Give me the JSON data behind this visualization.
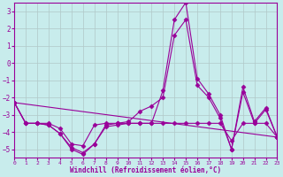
{
  "xlabel": "Windchill (Refroidissement éolien,°C)",
  "background_color": "#c8ecec",
  "line_color": "#990099",
  "grid_color": "#b0c8c8",
  "xlim": [
    0,
    23
  ],
  "ylim": [
    -5.5,
    3.5
  ],
  "yticks": [
    -5,
    -4,
    -3,
    -2,
    -1,
    0,
    1,
    2,
    3
  ],
  "xticks": [
    0,
    1,
    2,
    3,
    4,
    5,
    6,
    7,
    8,
    9,
    10,
    11,
    12,
    13,
    14,
    15,
    16,
    17,
    18,
    19,
    20,
    21,
    22,
    23
  ],
  "series": [
    {
      "x": [
        0,
        1,
        2,
        3,
        4,
        5,
        6,
        7,
        8,
        9,
        10,
        11,
        12,
        13,
        14,
        15,
        16,
        17,
        18,
        19,
        20,
        21,
        22,
        23
      ],
      "y": [
        -2.3,
        -3.5,
        -3.5,
        -3.6,
        -4.1,
        -5.0,
        -5.3,
        -4.7,
        -3.7,
        -3.6,
        -3.5,
        -3.5,
        -3.5,
        -1.6,
        2.5,
        3.5,
        -0.9,
        -1.8,
        -3.0,
        -5.0,
        -1.4,
        -3.4,
        -2.6,
        -4.3
      ],
      "marker": "D",
      "markersize": 2.5
    },
    {
      "x": [
        0,
        1,
        2,
        3,
        4,
        5,
        6,
        7,
        8,
        9,
        10,
        11,
        12,
        13,
        14,
        15,
        16,
        17,
        18,
        19,
        20,
        21,
        22,
        23
      ],
      "y": [
        -2.3,
        -3.5,
        -3.5,
        -3.6,
        -4.1,
        -4.9,
        -5.2,
        -4.7,
        -3.6,
        -3.5,
        -3.4,
        -2.8,
        -2.5,
        -2.0,
        1.6,
        2.5,
        -1.3,
        -2.0,
        -3.2,
        -5.0,
        -1.7,
        -3.5,
        -2.7,
        -4.3
      ],
      "marker": "D",
      "markersize": 2.5
    },
    {
      "x": [
        0,
        23
      ],
      "y": [
        -2.3,
        -4.3
      ],
      "marker": null,
      "markersize": 0
    },
    {
      "x": [
        0,
        1,
        2,
        3,
        4,
        5,
        6,
        7,
        8,
        9,
        10,
        11,
        12,
        13,
        14,
        15,
        16,
        17,
        18,
        19,
        20,
        21,
        22,
        23
      ],
      "y": [
        -2.3,
        -3.5,
        -3.5,
        -3.5,
        -3.8,
        -4.7,
        -4.8,
        -3.6,
        -3.5,
        -3.5,
        -3.5,
        -3.5,
        -3.5,
        -3.5,
        -3.5,
        -3.5,
        -3.5,
        -3.5,
        -3.5,
        -4.5,
        -3.5,
        -3.5,
        -3.5,
        -4.3
      ],
      "marker": "D",
      "markersize": 2.5
    }
  ]
}
